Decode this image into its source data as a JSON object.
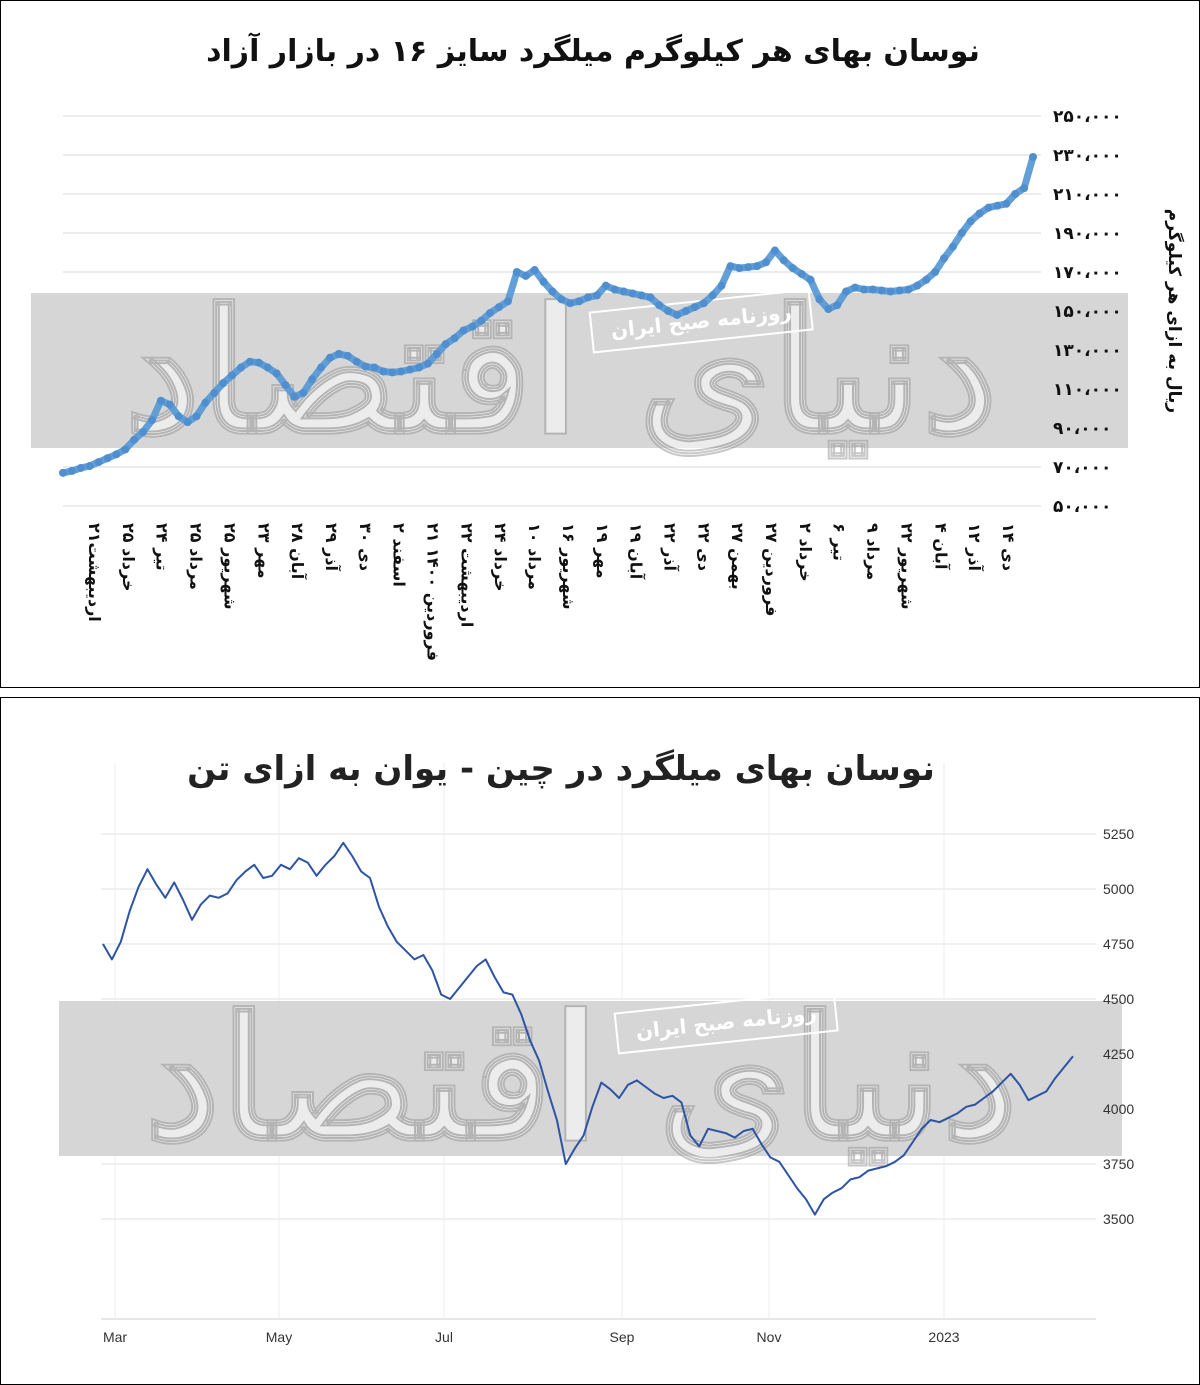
{
  "chart_data": [
    {
      "type": "line",
      "title": "نوسان بهای هر کیلوگرم میلگرد سایز ۱۶ در بازار آزاد",
      "ylabel": "ریال به ازای هر کیلوگرم",
      "xlabel": "",
      "ylim": [
        50000,
        250000
      ],
      "y_ticks": [
        "۲۵۰،۰۰۰",
        "۲۳۰،۰۰۰",
        "۲۱۰،۰۰۰",
        "۱۹۰،۰۰۰",
        "۱۷۰،۰۰۰",
        "۱۵۰،۰۰۰",
        "۱۳۰،۰۰۰",
        "۱۱۰،۰۰۰",
        "۹۰،۰۰۰",
        "۷۰،۰۰۰",
        "۵۰،۰۰۰"
      ],
      "y_tick_values": [
        250000,
        230000,
        210000,
        190000,
        170000,
        150000,
        130000,
        110000,
        90000,
        70000,
        50000
      ],
      "categories": [
        "۲۱اردیبهشت",
        "۲۵ خرداد",
        "۲۴ تیر",
        "۲۵ مرداد",
        "۲۵ شهریور",
        "۲۳ مهر",
        "۲۸ آبان",
        "۲۹ آذر",
        "۳۰ دی",
        "۲ اسفند",
        "۲۱ فروردین ۱۴۰۰",
        "۲۲ اردیبهشت",
        "۲۴ خرداد",
        "۱۰ مرداد",
        "۱۶ شهریور",
        "۱۹ مهر",
        "۱۹ آبان",
        "۲۲ آذر",
        "۲۲ دی",
        "۲۷ بهمن",
        "۲۷ فروردین",
        "۲ خرداد",
        "۶ تیر",
        "۹ مرداد",
        "۲۲ شهریور",
        "۴ آبان",
        "۱۲ آذر",
        "۱۴ دی"
      ],
      "grid": true,
      "legend": "none",
      "line_color": "#5b9bd5",
      "series": [
        {
          "values": [
            [
              0,
              67000
            ],
            [
              1,
              68000
            ],
            [
              2,
              69500
            ],
            [
              3,
              70500
            ],
            [
              4,
              72500
            ],
            [
              5,
              74500
            ],
            [
              6,
              76500
            ],
            [
              7,
              79000
            ],
            [
              8,
              84000
            ],
            [
              9,
              88000
            ],
            [
              10,
              94000
            ],
            [
              11,
              104000
            ],
            [
              12,
              102000
            ],
            [
              13,
              96000
            ],
            [
              14,
              93000
            ],
            [
              15,
              96000
            ],
            [
              16,
              103000
            ],
            [
              17,
              108000
            ],
            [
              18,
              113000
            ],
            [
              19,
              117000
            ],
            [
              20,
              121000
            ],
            [
              21,
              124000
            ],
            [
              22,
              123500
            ],
            [
              23,
              121000
            ],
            [
              24,
              118000
            ],
            [
              25,
              112000
            ],
            [
              26,
              106000
            ],
            [
              27,
              108000
            ],
            [
              28,
              115000
            ],
            [
              29,
              121000
            ],
            [
              30,
              126000
            ],
            [
              31,
              128000
            ],
            [
              32,
              127000
            ],
            [
              33,
              124000
            ],
            [
              34,
              121500
            ],
            [
              35,
              121000
            ],
            [
              36,
              119000
            ],
            [
              37,
              118500
            ],
            [
              38,
              119000
            ],
            [
              39,
              120000
            ],
            [
              40,
              121000
            ],
            [
              41,
              123000
            ],
            [
              42,
              128000
            ],
            [
              43,
              133000
            ],
            [
              44,
              136000
            ],
            [
              45,
              140000
            ],
            [
              46,
              142000
            ],
            [
              47,
              145000
            ],
            [
              48,
              149000
            ],
            [
              49,
              152000
            ],
            [
              50,
              155000
            ],
            [
              51,
              170000
            ],
            [
              52,
              168000
            ],
            [
              53,
              171000
            ],
            [
              54,
              165000
            ],
            [
              55,
              160000
            ],
            [
              56,
              156000
            ],
            [
              57,
              154000
            ],
            [
              58,
              155000
            ],
            [
              59,
              157000
            ],
            [
              60,
              158000
            ],
            [
              61,
              163000
            ],
            [
              62,
              161000
            ],
            [
              63,
              160000
            ],
            [
              64,
              159000
            ],
            [
              65,
              158000
            ],
            [
              66,
              157000
            ],
            [
              67,
              153000
            ],
            [
              68,
              150000
            ],
            [
              69,
              148000
            ],
            [
              70,
              150000
            ],
            [
              71,
              152000
            ],
            [
              72,
              154000
            ],
            [
              73,
              158000
            ],
            [
              74,
              163000
            ],
            [
              75,
              173000
            ],
            [
              76,
              172000
            ],
            [
              77,
              172500
            ],
            [
              78,
              173000
            ],
            [
              79,
              175000
            ],
            [
              80,
              181000
            ],
            [
              81,
              176000
            ],
            [
              82,
              172000
            ],
            [
              83,
              169000
            ],
            [
              84,
              166000
            ],
            [
              85,
              156000
            ],
            [
              86,
              151000
            ],
            [
              87,
              153000
            ],
            [
              88,
              160000
            ],
            [
              89,
              162000
            ],
            [
              90,
              161000
            ],
            [
              91,
              161000
            ],
            [
              92,
              160500
            ],
            [
              93,
              160000
            ],
            [
              94,
              160500
            ],
            [
              95,
              161000
            ],
            [
              96,
              163000
            ],
            [
              97,
              166000
            ],
            [
              98,
              170000
            ],
            [
              99,
              177000
            ],
            [
              100,
              183000
            ],
            [
              101,
              190000
            ],
            [
              102,
              196000
            ],
            [
              103,
              200000
            ],
            [
              104,
              203000
            ],
            [
              105,
              204000
            ],
            [
              106,
              205000
            ],
            [
              107,
              210000
            ],
            [
              108,
              213000
            ],
            [
              109,
              229000
            ]
          ]
        }
      ]
    },
    {
      "type": "line",
      "title": "نوسان بهای میلگرد در چین - یوان به ازای تن",
      "xlabel": "",
      "ylabel": "",
      "ylim": [
        3300,
        5300
      ],
      "y_ticks": [
        5250,
        5000,
        4750,
        4500,
        4250,
        4000,
        3750,
        3500
      ],
      "x_ticks": [
        "Mar",
        "May",
        "Jul",
        "Sep",
        "Nov",
        "2023"
      ],
      "grid": true,
      "legend": "none",
      "line_color": "#2d54a4",
      "series": [
        {
          "values": [
            [
              0,
              4750
            ],
            [
              1,
              4680
            ],
            [
              2,
              4760
            ],
            [
              3,
              4900
            ],
            [
              4,
              5010
            ],
            [
              5,
              5090
            ],
            [
              6,
              5020
            ],
            [
              7,
              4960
            ],
            [
              8,
              5030
            ],
            [
              9,
              4950
            ],
            [
              10,
              4860
            ],
            [
              11,
              4930
            ],
            [
              12,
              4970
            ],
            [
              13,
              4960
            ],
            [
              14,
              4980
            ],
            [
              15,
              5040
            ],
            [
              16,
              5080
            ],
            [
              17,
              5110
            ],
            [
              18,
              5050
            ],
            [
              19,
              5060
            ],
            [
              20,
              5110
            ],
            [
              21,
              5090
            ],
            [
              22,
              5140
            ],
            [
              23,
              5120
            ],
            [
              24,
              5060
            ],
            [
              25,
              5110
            ],
            [
              26,
              5150
            ],
            [
              27,
              5210
            ],
            [
              28,
              5150
            ],
            [
              29,
              5080
            ],
            [
              30,
              5050
            ],
            [
              31,
              4920
            ],
            [
              32,
              4830
            ],
            [
              33,
              4760
            ],
            [
              34,
              4720
            ],
            [
              35,
              4680
            ],
            [
              36,
              4700
            ],
            [
              37,
              4630
            ],
            [
              38,
              4520
            ],
            [
              39,
              4500
            ],
            [
              40,
              4550
            ],
            [
              41,
              4600
            ],
            [
              42,
              4650
            ],
            [
              43,
              4680
            ],
            [
              44,
              4600
            ],
            [
              45,
              4530
            ],
            [
              46,
              4520
            ],
            [
              47,
              4430
            ],
            [
              48,
              4310
            ],
            [
              49,
              4220
            ],
            [
              50,
              4080
            ],
            [
              51,
              3950
            ],
            [
              52,
              3750
            ],
            [
              53,
              3820
            ],
            [
              54,
              3880
            ],
            [
              55,
              4010
            ],
            [
              56,
              4120
            ],
            [
              57,
              4090
            ],
            [
              58,
              4050
            ],
            [
              59,
              4110
            ],
            [
              60,
              4130
            ],
            [
              61,
              4100
            ],
            [
              62,
              4070
            ],
            [
              63,
              4050
            ],
            [
              64,
              4060
            ],
            [
              65,
              4030
            ],
            [
              66,
              3880
            ],
            [
              67,
              3830
            ],
            [
              68,
              3910
            ],
            [
              69,
              3900
            ],
            [
              70,
              3890
            ],
            [
              71,
              3870
            ],
            [
              72,
              3900
            ],
            [
              73,
              3910
            ],
            [
              74,
              3840
            ],
            [
              75,
              3780
            ],
            [
              76,
              3760
            ],
            [
              77,
              3700
            ],
            [
              78,
              3640
            ],
            [
              79,
              3590
            ],
            [
              80,
              3520
            ],
            [
              81,
              3590
            ],
            [
              82,
              3620
            ],
            [
              83,
              3640
            ],
            [
              84,
              3680
            ],
            [
              85,
              3690
            ],
            [
              86,
              3720
            ],
            [
              87,
              3730
            ],
            [
              88,
              3740
            ],
            [
              89,
              3760
            ],
            [
              90,
              3790
            ],
            [
              91,
              3850
            ],
            [
              92,
              3910
            ],
            [
              93,
              3950
            ],
            [
              94,
              3940
            ],
            [
              95,
              3960
            ],
            [
              96,
              3980
            ],
            [
              97,
              4010
            ],
            [
              98,
              4020
            ],
            [
              99,
              4050
            ],
            [
              100,
              4080
            ],
            [
              101,
              4120
            ],
            [
              102,
              4160
            ],
            [
              103,
              4110
            ],
            [
              104,
              4040
            ],
            [
              105,
              4060
            ],
            [
              106,
              4080
            ],
            [
              107,
              4140
            ],
            [
              108,
              4190
            ],
            [
              109,
              4240
            ]
          ]
        }
      ]
    }
  ],
  "watermark": {
    "main": "دنیای اقتصاد",
    "sub": "روزنامه صبح ایران"
  }
}
